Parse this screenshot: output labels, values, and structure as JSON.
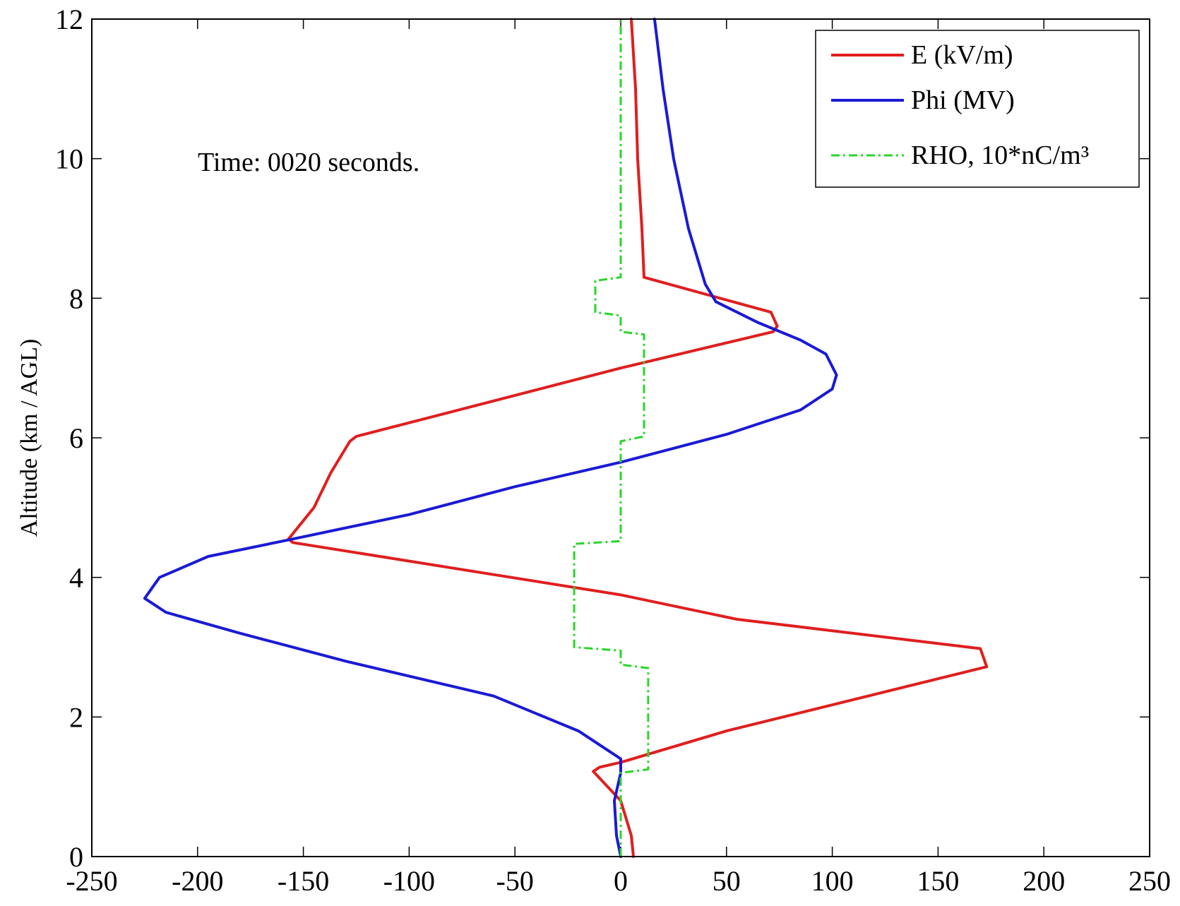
{
  "chart_data": {
    "type": "line",
    "title": "",
    "annotation": "Time: 0020 seconds.",
    "xlabel": "",
    "ylabel": "Altitude (km / AGL)",
    "xlim": [
      -250,
      250
    ],
    "ylim": [
      0,
      12
    ],
    "xticks": [
      -250,
      -200,
      -150,
      -100,
      -50,
      0,
      50,
      100,
      150,
      200,
      250
    ],
    "yticks": [
      0,
      2,
      4,
      6,
      8,
      10,
      12
    ],
    "grid": false,
    "legend_position": "top-right",
    "series": [
      {
        "name": "E (kV/m)",
        "color": "#e01e1e",
        "style": "solid",
        "points": [
          [
            6,
            0
          ],
          [
            5,
            0.3
          ],
          [
            0,
            0.8
          ],
          [
            -13,
            1.22
          ],
          [
            -10,
            1.28
          ],
          [
            0,
            1.35
          ],
          [
            50,
            1.8
          ],
          [
            173,
            2.72
          ],
          [
            170,
            2.98
          ],
          [
            55,
            3.4
          ],
          [
            0,
            3.75
          ],
          [
            -155,
            4.5
          ],
          [
            -157,
            4.55
          ],
          [
            -145,
            5.0
          ],
          [
            -137,
            5.5
          ],
          [
            -128,
            5.95
          ],
          [
            -125,
            6.02
          ],
          [
            0,
            7.0
          ],
          [
            72,
            7.52
          ],
          [
            74,
            7.6
          ],
          [
            71,
            7.8
          ],
          [
            11,
            8.3
          ],
          [
            10,
            9.0
          ],
          [
            8,
            10.0
          ],
          [
            7,
            11.0
          ],
          [
            5,
            12.0
          ]
        ]
      },
      {
        "name": "Phi (MV)",
        "color": "#1a1ad6",
        "style": "solid",
        "points": [
          [
            0,
            0
          ],
          [
            -2,
            0.3
          ],
          [
            -3,
            0.8
          ],
          [
            0,
            1.2
          ],
          [
            0,
            1.4
          ],
          [
            -20,
            1.8
          ],
          [
            -60,
            2.3
          ],
          [
            -130,
            2.8
          ],
          [
            -180,
            3.2
          ],
          [
            -215,
            3.5
          ],
          [
            -225,
            3.7
          ],
          [
            -218,
            4.0
          ],
          [
            -195,
            4.3
          ],
          [
            -155,
            4.55
          ],
          [
            -100,
            4.9
          ],
          [
            -50,
            5.3
          ],
          [
            0,
            5.65
          ],
          [
            50,
            6.05
          ],
          [
            85,
            6.4
          ],
          [
            100,
            6.7
          ],
          [
            102,
            6.9
          ],
          [
            97,
            7.2
          ],
          [
            85,
            7.4
          ],
          [
            65,
            7.65
          ],
          [
            45,
            7.95
          ],
          [
            40,
            8.2
          ],
          [
            32,
            9.0
          ],
          [
            25,
            10.0
          ],
          [
            20,
            11.0
          ],
          [
            16,
            12.0
          ]
        ]
      },
      {
        "name": "RHO, 10*nC/m³",
        "color": "#28d628",
        "style": "dashdot",
        "points": [
          [
            0,
            0
          ],
          [
            0,
            1.2
          ],
          [
            13,
            1.25
          ],
          [
            13,
            2.7
          ],
          [
            0,
            2.75
          ],
          [
            0,
            2.95
          ],
          [
            -22,
            3.0
          ],
          [
            -22,
            4.48
          ],
          [
            0,
            4.52
          ],
          [
            0,
            5.95
          ],
          [
            11,
            6.02
          ],
          [
            11,
            7.48
          ],
          [
            0,
            7.52
          ],
          [
            0,
            7.75
          ],
          [
            -12,
            7.8
          ],
          [
            -12,
            8.25
          ],
          [
            0,
            8.3
          ],
          [
            0,
            12.0
          ]
        ]
      }
    ]
  }
}
